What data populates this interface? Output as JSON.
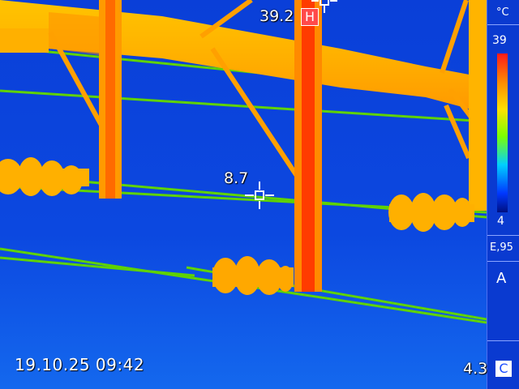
{
  "scale": {
    "unit": "°C",
    "max": "39",
    "min": "4"
  },
  "emissivity": "E,95",
  "mode": "A",
  "hot_spot": {
    "value": "39.2",
    "badge": "H"
  },
  "center_spot": {
    "value": "8.7"
  },
  "cold_spot": {
    "value": "4.3",
    "badge": "C"
  },
  "timestamp": "19.10.25 09:42",
  "colors": {
    "background": "#0b3fd6",
    "hot": "#ff3b00",
    "warm": "#ff9a00",
    "line": "#5fd200"
  },
  "icons": {
    "crosshair": "crosshair-icon",
    "hot_marker": "hot-marker-icon",
    "cold_marker": "cold-marker-icon"
  }
}
